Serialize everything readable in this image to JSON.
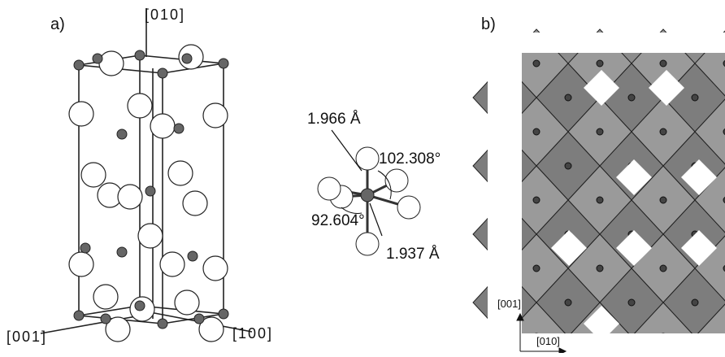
{
  "panel_a": {
    "label": "a)",
    "axes": {
      "top": "[010]",
      "left": "[001]",
      "right": "[100]"
    },
    "annotations": {
      "bond_top": "1.966 Å",
      "angle_top": "102.308°",
      "angle_left": "92.604°",
      "bond_right": "1.937 Å"
    }
  },
  "panel_b": {
    "label": "b)",
    "axes": {
      "vertical": "[001]",
      "horizontal": "[010]"
    }
  }
}
